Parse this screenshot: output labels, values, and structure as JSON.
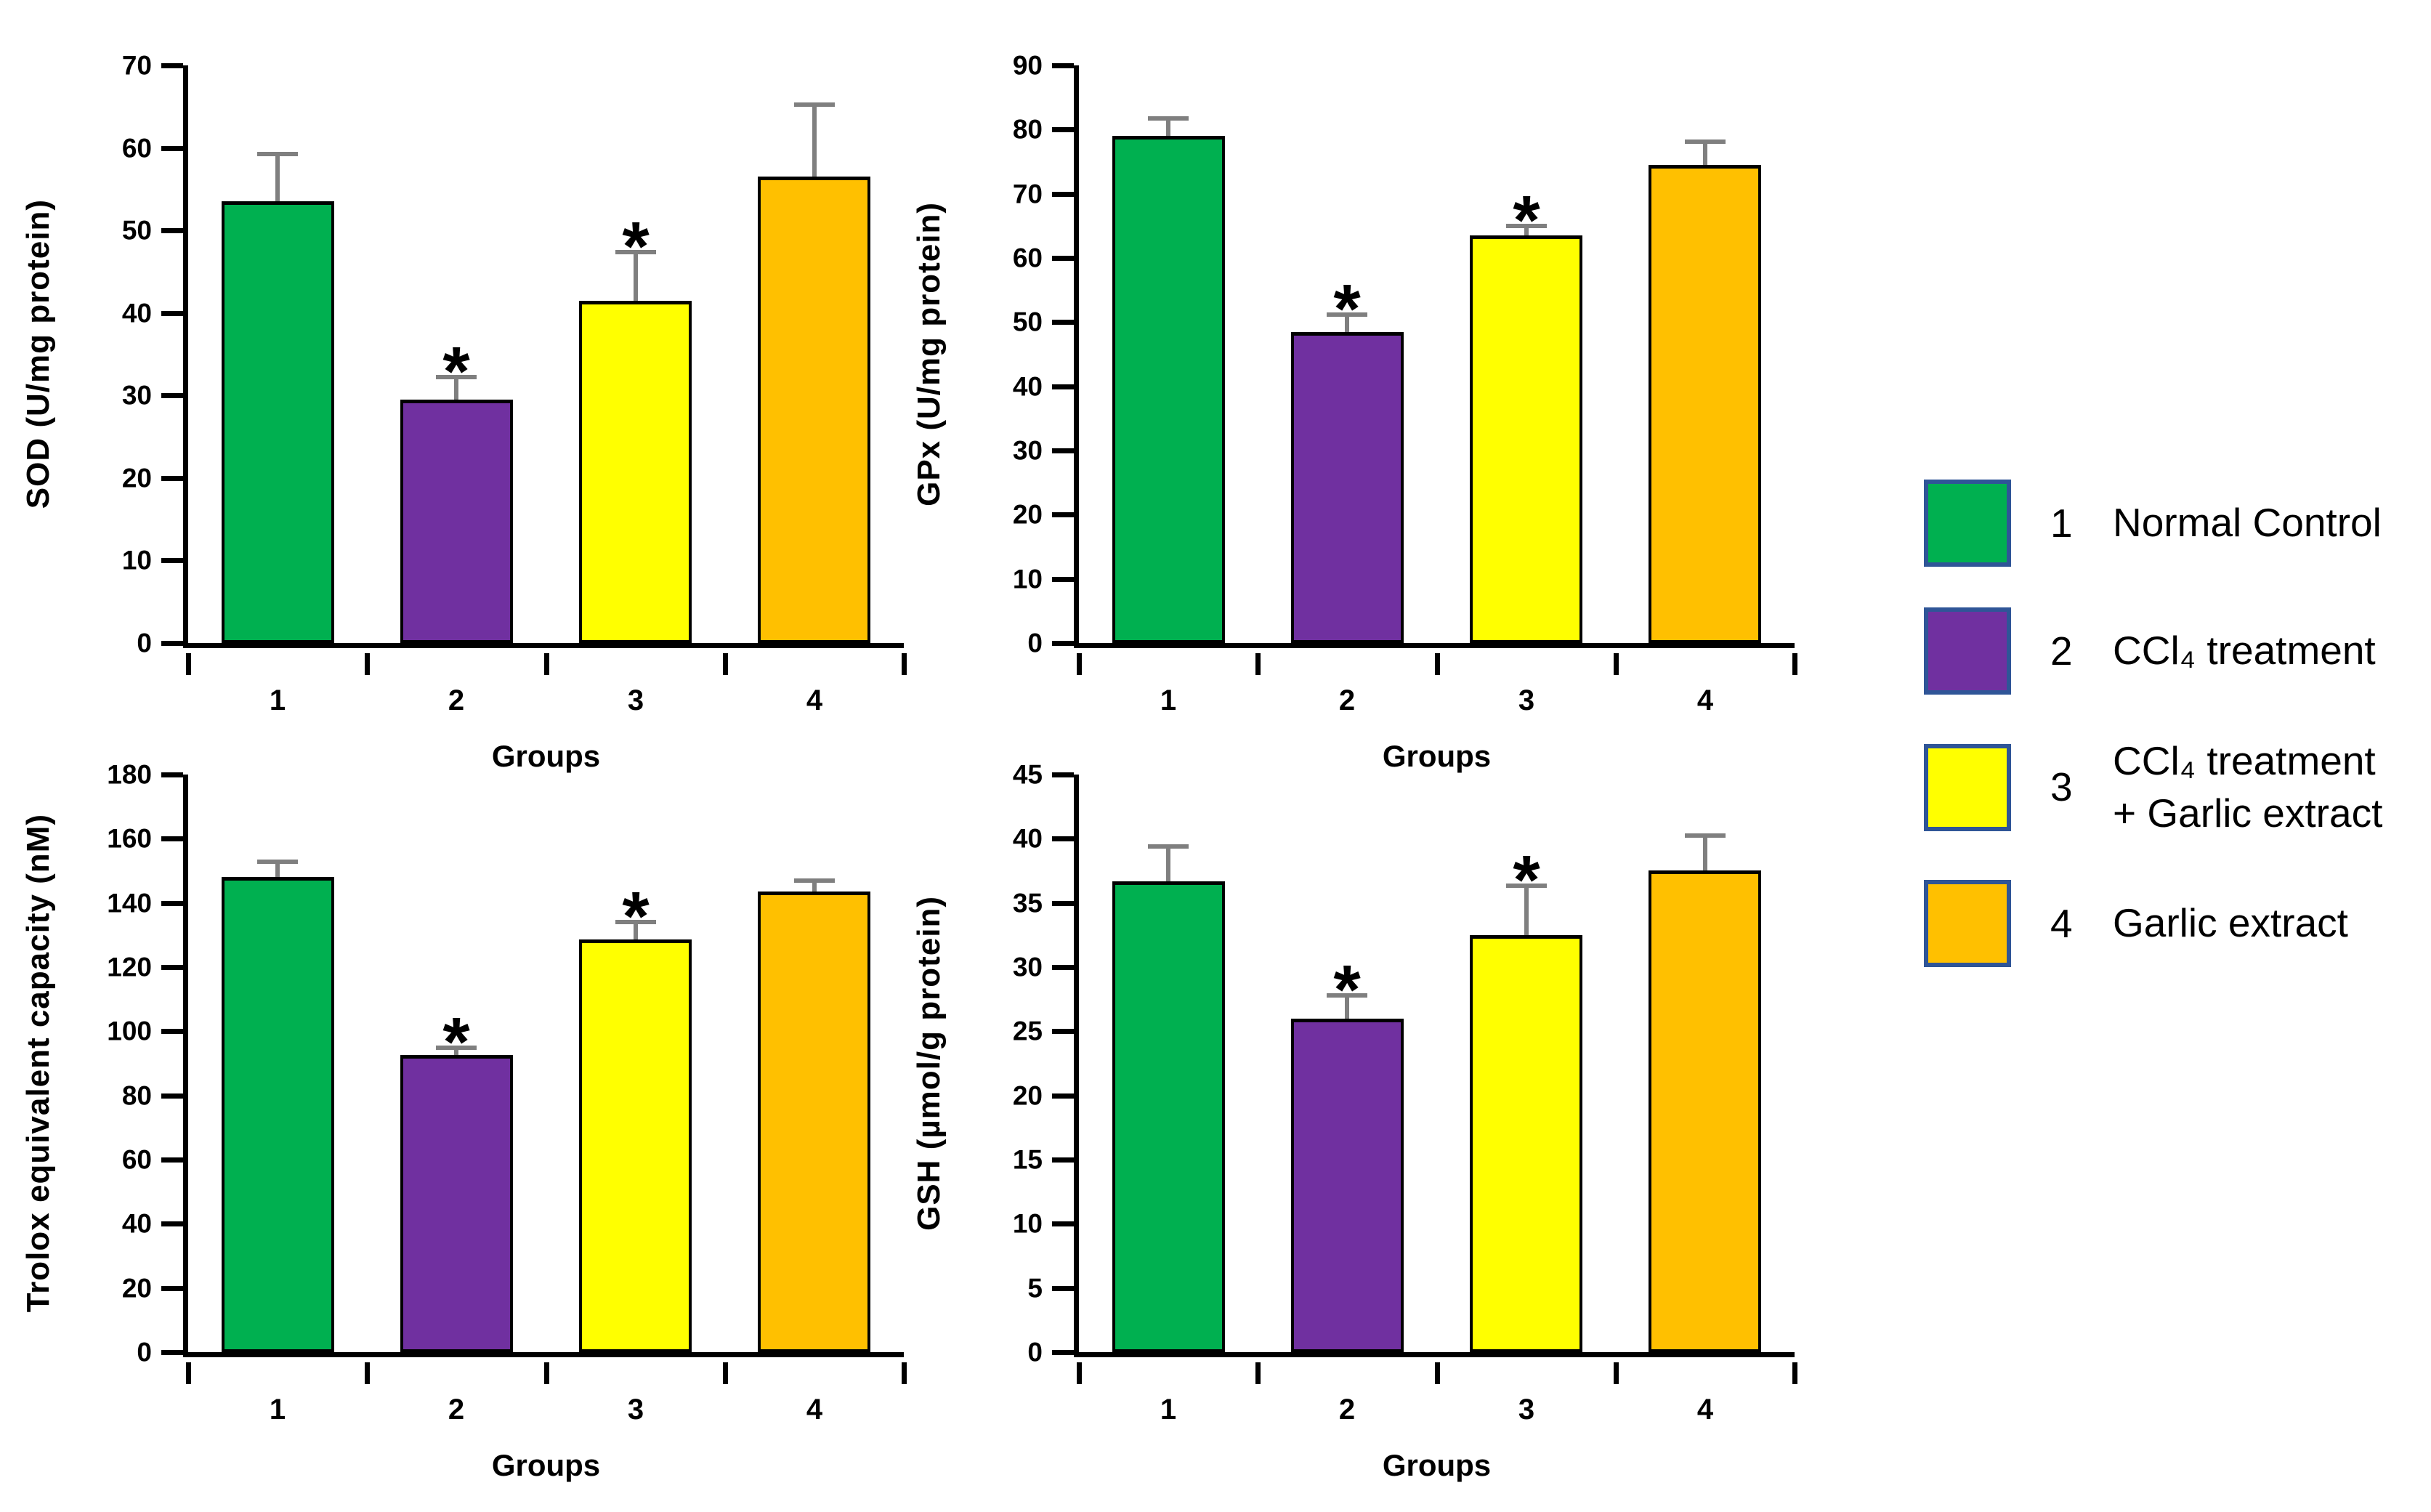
{
  "colors": {
    "background": "#FFFFFF",
    "bars": [
      "#00B050",
      "#7030A0",
      "#FFFF00",
      "#FFC000"
    ],
    "bar_border": "#000000",
    "axis": "#000000",
    "error_bar": "#7F7F7F",
    "legend_swatch_border": "#2F5597",
    "text": "#000000"
  },
  "chart_data": [
    {
      "type": "bar",
      "title": "",
      "ylabel": "SOD (U/mg protein)",
      "xlabel": "Groups",
      "categories": [
        "1",
        "2",
        "3",
        "4"
      ],
      "values": [
        53.5,
        29.5,
        41.5,
        56.5
      ],
      "errors_upper": [
        6,
        3,
        6.2,
        9
      ],
      "significance": [
        "",
        "*",
        "*",
        ""
      ],
      "ylim": [
        0,
        70
      ],
      "yticks": [
        0,
        10,
        20,
        30,
        40,
        50,
        60,
        70
      ],
      "grid": false
    },
    {
      "type": "bar",
      "title": "",
      "ylabel": "GPx (U/mg protein)",
      "xlabel": "Groups",
      "categories": [
        "1",
        "2",
        "3",
        "4"
      ],
      "values": [
        79,
        48.5,
        63.5,
        74.5
      ],
      "errors_upper": [
        3,
        3,
        1.8,
        4
      ],
      "significance": [
        "",
        "*",
        "*",
        ""
      ],
      "ylim": [
        0,
        90
      ],
      "yticks": [
        0,
        10,
        20,
        30,
        40,
        50,
        60,
        70,
        80,
        90
      ],
      "grid": false
    },
    {
      "type": "bar",
      "title": "",
      "ylabel": "Trolox equivalent capacity (nM)",
      "xlabel": "Groups",
      "categories": [
        "1",
        "2",
        "3",
        "4"
      ],
      "values": [
        148,
        92.5,
        128.5,
        143.5
      ],
      "errors_upper": [
        5.5,
        3,
        6,
        4
      ],
      "significance": [
        "",
        "*",
        "*",
        ""
      ],
      "ylim": [
        0,
        180
      ],
      "yticks": [
        0,
        20,
        40,
        60,
        80,
        100,
        120,
        140,
        160,
        180
      ],
      "grid": false
    },
    {
      "type": "bar",
      "title": "",
      "ylabel": "GSH (µmol/g protein)",
      "xlabel": "Groups",
      "categories": [
        "1",
        "2",
        "3",
        "4"
      ],
      "values": [
        36.7,
        26,
        32.5,
        37.5
      ],
      "errors_upper": [
        2.9,
        2,
        4,
        2.9
      ],
      "significance": [
        "",
        "*",
        "*",
        ""
      ],
      "ylim": [
        0,
        45
      ],
      "yticks": [
        0,
        5,
        10,
        15,
        20,
        25,
        30,
        35,
        40,
        45
      ],
      "grid": false
    }
  ],
  "legend": {
    "items": [
      {
        "number": "1",
        "label": "Normal Control"
      },
      {
        "number": "2",
        "label": "CCl₄ treatment"
      },
      {
        "number": "3",
        "label": "CCl₄ treatment\n+ Garlic extract"
      },
      {
        "number": "4",
        "label": "Garlic extract"
      }
    ]
  }
}
